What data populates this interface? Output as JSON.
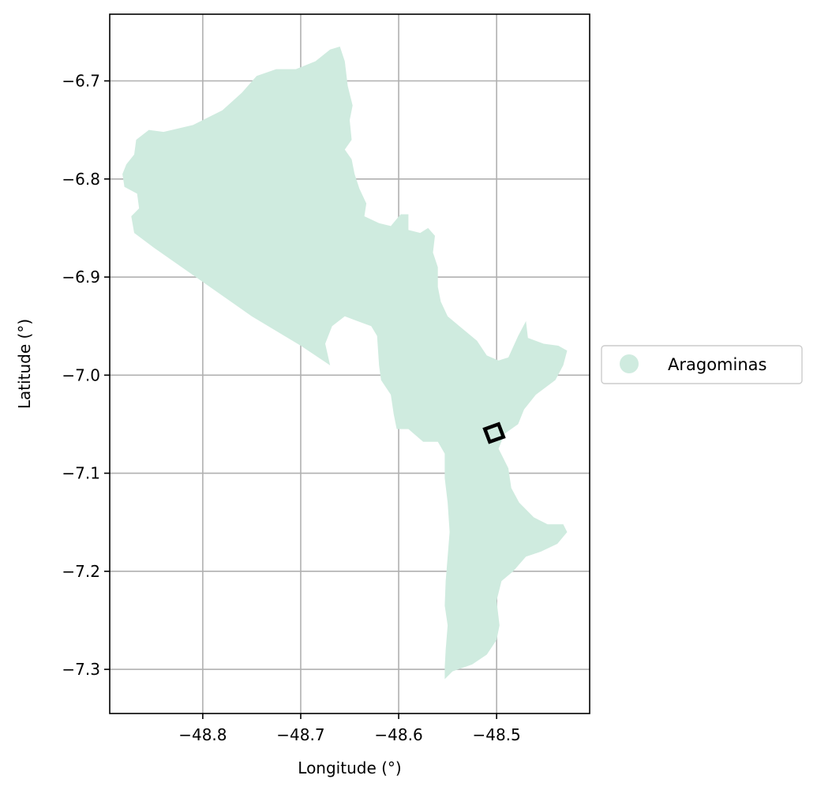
{
  "chart_data": {
    "type": "map",
    "xlabel": "Longitude (°)",
    "ylabel": "Latitude (°)",
    "xlim": [
      -48.895,
      -48.405
    ],
    "ylim": [
      -7.345,
      -6.632
    ],
    "xticks": [
      -48.8,
      -48.7,
      -48.6,
      -48.5
    ],
    "yticks": [
      -6.7,
      -6.8,
      -6.9,
      -7.0,
      -7.1,
      -7.2,
      -7.3
    ],
    "grid": true,
    "legend": {
      "placement": "center-right-outside",
      "entries": [
        {
          "label": "Aragominas",
          "color": "#cfebdf",
          "marker": "circle"
        }
      ]
    },
    "region": {
      "name": "Aragominas",
      "fill_color": "#cfebdf",
      "boundary": [
        [
          -48.66,
          -6.665
        ],
        [
          -48.655,
          -6.68
        ],
        [
          -48.652,
          -6.705
        ],
        [
          -48.647,
          -6.725
        ],
        [
          -48.65,
          -6.74
        ],
        [
          -48.648,
          -6.76
        ],
        [
          -48.655,
          -6.77
        ],
        [
          -48.648,
          -6.78
        ],
        [
          -48.645,
          -6.795
        ],
        [
          -48.64,
          -6.81
        ],
        [
          -48.633,
          -6.825
        ],
        [
          -48.635,
          -6.838
        ],
        [
          -48.62,
          -6.845
        ],
        [
          -48.608,
          -6.848
        ],
        [
          -48.598,
          -6.836
        ],
        [
          -48.59,
          -6.836
        ],
        [
          -48.59,
          -6.852
        ],
        [
          -48.578,
          -6.855
        ],
        [
          -48.57,
          -6.85
        ],
        [
          -48.563,
          -6.858
        ],
        [
          -48.565,
          -6.875
        ],
        [
          -48.56,
          -6.89
        ],
        [
          -48.56,
          -6.91
        ],
        [
          -48.557,
          -6.925
        ],
        [
          -48.55,
          -6.94
        ],
        [
          -48.538,
          -6.95
        ],
        [
          -48.52,
          -6.965
        ],
        [
          -48.51,
          -6.98
        ],
        [
          -48.498,
          -6.985
        ],
        [
          -48.488,
          -6.982
        ],
        [
          -48.478,
          -6.96
        ],
        [
          -48.47,
          -6.945
        ],
        [
          -48.468,
          -6.962
        ],
        [
          -48.452,
          -6.968
        ],
        [
          -48.437,
          -6.97
        ],
        [
          -48.428,
          -6.975
        ],
        [
          -48.432,
          -6.99
        ],
        [
          -48.44,
          -7.005
        ],
        [
          -48.46,
          -7.02
        ],
        [
          -48.472,
          -7.035
        ],
        [
          -48.478,
          -7.05
        ],
        [
          -48.492,
          -7.06
        ],
        [
          -48.498,
          -7.075
        ],
        [
          -48.488,
          -7.095
        ],
        [
          -48.485,
          -7.115
        ],
        [
          -48.477,
          -7.13
        ],
        [
          -48.462,
          -7.145
        ],
        [
          -48.448,
          -7.152
        ],
        [
          -48.432,
          -7.152
        ],
        [
          -48.428,
          -7.16
        ],
        [
          -48.438,
          -7.172
        ],
        [
          -48.455,
          -7.18
        ],
        [
          -48.47,
          -7.185
        ],
        [
          -48.483,
          -7.2
        ],
        [
          -48.495,
          -7.21
        ],
        [
          -48.5,
          -7.23
        ],
        [
          -48.497,
          -7.255
        ],
        [
          -48.5,
          -7.27
        ],
        [
          -48.51,
          -7.285
        ],
        [
          -48.525,
          -7.295
        ],
        [
          -48.545,
          -7.302
        ],
        [
          -48.553,
          -7.31
        ],
        [
          -48.553,
          -7.298
        ],
        [
          -48.552,
          -7.28
        ],
        [
          -48.55,
          -7.255
        ],
        [
          -48.553,
          -7.235
        ],
        [
          -48.552,
          -7.21
        ],
        [
          -48.55,
          -7.185
        ],
        [
          -48.548,
          -7.16
        ],
        [
          -48.55,
          -7.13
        ],
        [
          -48.553,
          -7.105
        ],
        [
          -48.553,
          -7.08
        ],
        [
          -48.56,
          -7.068
        ],
        [
          -48.575,
          -7.068
        ],
        [
          -48.59,
          -7.055
        ],
        [
          -48.602,
          -7.055
        ],
        [
          -48.605,
          -7.04
        ],
        [
          -48.608,
          -7.02
        ],
        [
          -48.618,
          -7.005
        ],
        [
          -48.62,
          -6.99
        ],
        [
          -48.622,
          -6.96
        ],
        [
          -48.628,
          -6.95
        ],
        [
          -48.642,
          -6.945
        ],
        [
          -48.655,
          -6.94
        ],
        [
          -48.668,
          -6.95
        ],
        [
          -48.675,
          -6.968
        ],
        [
          -48.67,
          -6.99
        ],
        [
          -48.7,
          -6.97
        ],
        [
          -48.75,
          -6.94
        ],
        [
          -48.8,
          -6.905
        ],
        [
          -48.85,
          -6.87
        ],
        [
          -48.87,
          -6.855
        ],
        [
          -48.873,
          -6.838
        ],
        [
          -48.865,
          -6.83
        ],
        [
          -48.867,
          -6.815
        ],
        [
          -48.88,
          -6.808
        ],
        [
          -48.882,
          -6.795
        ],
        [
          -48.878,
          -6.785
        ],
        [
          -48.87,
          -6.775
        ],
        [
          -48.868,
          -6.76
        ],
        [
          -48.855,
          -6.75
        ],
        [
          -48.84,
          -6.752
        ],
        [
          -48.81,
          -6.745
        ],
        [
          -48.78,
          -6.73
        ],
        [
          -48.76,
          -6.712
        ],
        [
          -48.745,
          -6.695
        ],
        [
          -48.725,
          -6.688
        ],
        [
          -48.705,
          -6.688
        ],
        [
          -48.685,
          -6.68
        ],
        [
          -48.67,
          -6.668
        ]
      ]
    },
    "marked_area": {
      "outline_color": "#000000",
      "corners": [
        [
          -48.512,
          -7.055
        ],
        [
          -48.498,
          -7.05
        ],
        [
          -48.493,
          -7.063
        ],
        [
          -48.507,
          -7.068
        ]
      ]
    }
  }
}
